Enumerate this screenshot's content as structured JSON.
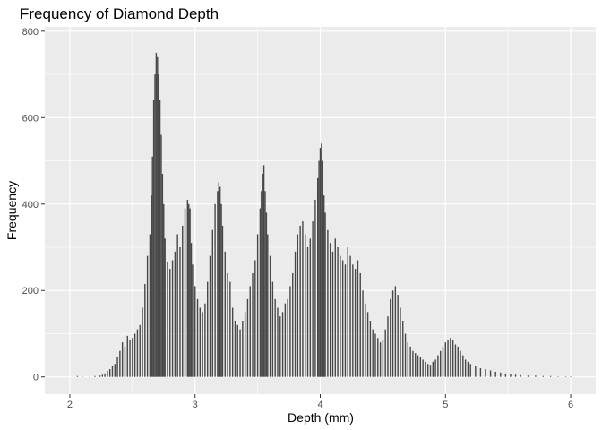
{
  "chart_data": {
    "type": "bar",
    "title": "Frequency of Diamond Depth",
    "xlabel": "Depth (mm)",
    "ylabel": "Frequency",
    "xlim": [
      1.8,
      6.2
    ],
    "ylim": [
      -40,
      810
    ],
    "xticks": [
      2,
      3,
      4,
      5,
      6
    ],
    "yticks": [
      0,
      200,
      400,
      600,
      800
    ],
    "xtick_labels": [
      "2",
      "3",
      "4",
      "5",
      "6"
    ],
    "ytick_labels": [
      "0",
      "200",
      "400",
      "600",
      "800"
    ],
    "grid": true,
    "bin_width": 0.01,
    "bar_color": "#474747",
    "panel_color": "#ebebeb",
    "grid_color": "#ffffff",
    "x": [
      2.06,
      2.1,
      2.16,
      2.2,
      2.24,
      2.26,
      2.28,
      2.3,
      2.32,
      2.34,
      2.36,
      2.38,
      2.4,
      2.42,
      2.44,
      2.46,
      2.48,
      2.5,
      2.52,
      2.54,
      2.56,
      2.58,
      2.6,
      2.62,
      2.64,
      2.65,
      2.66,
      2.67,
      2.68,
      2.69,
      2.7,
      2.71,
      2.72,
      2.73,
      2.74,
      2.75,
      2.76,
      2.78,
      2.8,
      2.82,
      2.84,
      2.86,
      2.88,
      2.9,
      2.92,
      2.94,
      2.95,
      2.96,
      2.97,
      2.98,
      3.0,
      3.02,
      3.04,
      3.06,
      3.08,
      3.1,
      3.12,
      3.14,
      3.16,
      3.18,
      3.19,
      3.2,
      3.21,
      3.22,
      3.24,
      3.26,
      3.28,
      3.3,
      3.32,
      3.34,
      3.36,
      3.38,
      3.4,
      3.42,
      3.44,
      3.46,
      3.48,
      3.5,
      3.52,
      3.53,
      3.54,
      3.55,
      3.56,
      3.57,
      3.58,
      3.6,
      3.62,
      3.64,
      3.66,
      3.68,
      3.7,
      3.72,
      3.74,
      3.76,
      3.78,
      3.8,
      3.82,
      3.84,
      3.86,
      3.88,
      3.9,
      3.92,
      3.94,
      3.96,
      3.98,
      3.99,
      4.0,
      4.01,
      4.02,
      4.03,
      4.04,
      4.06,
      4.08,
      4.1,
      4.12,
      4.14,
      4.16,
      4.18,
      4.2,
      4.22,
      4.24,
      4.26,
      4.28,
      4.3,
      4.32,
      4.34,
      4.36,
      4.38,
      4.4,
      4.42,
      4.44,
      4.46,
      4.48,
      4.5,
      4.52,
      4.54,
      4.56,
      4.58,
      4.6,
      4.62,
      4.64,
      4.66,
      4.68,
      4.7,
      4.72,
      4.74,
      4.76,
      4.78,
      4.8,
      4.82,
      4.84,
      4.86,
      4.88,
      4.9,
      4.92,
      4.94,
      4.96,
      4.98,
      5.0,
      5.02,
      5.04,
      5.06,
      5.08,
      5.1,
      5.12,
      5.14,
      5.16,
      5.18,
      5.2,
      5.24,
      5.28,
      5.32,
      5.36,
      5.4,
      5.44,
      5.48,
      5.52,
      5.56,
      5.6,
      5.66,
      5.72,
      5.78,
      5.84,
      5.9,
      5.96,
      6.0
    ],
    "values": [
      2,
      1,
      1,
      2,
      3,
      5,
      8,
      14,
      18,
      25,
      30,
      45,
      60,
      80,
      70,
      95,
      85,
      90,
      100,
      110,
      120,
      160,
      215,
      280,
      330,
      420,
      510,
      640,
      700,
      750,
      740,
      700,
      640,
      560,
      470,
      400,
      320,
      265,
      250,
      270,
      290,
      330,
      300,
      350,
      390,
      410,
      400,
      390,
      310,
      260,
      210,
      180,
      160,
      150,
      170,
      220,
      280,
      340,
      400,
      430,
      450,
      440,
      400,
      350,
      290,
      240,
      220,
      160,
      130,
      120,
      110,
      130,
      150,
      180,
      210,
      240,
      270,
      330,
      390,
      430,
      470,
      490,
      430,
      380,
      330,
      280,
      220,
      180,
      160,
      140,
      150,
      170,
      180,
      210,
      240,
      290,
      330,
      350,
      360,
      330,
      300,
      320,
      360,
      410,
      460,
      500,
      530,
      540,
      500,
      420,
      380,
      340,
      310,
      290,
      320,
      300,
      280,
      270,
      260,
      300,
      280,
      260,
      250,
      270,
      240,
      200,
      170,
      150,
      130,
      110,
      100,
      90,
      80,
      85,
      110,
      140,
      180,
      200,
      210,
      190,
      160,
      130,
      100,
      80,
      70,
      60,
      55,
      50,
      45,
      40,
      35,
      30,
      28,
      35,
      40,
      50,
      60,
      70,
      80,
      85,
      90,
      85,
      75,
      70,
      60,
      50,
      40,
      35,
      30,
      25,
      20,
      18,
      15,
      12,
      10,
      8,
      6,
      5,
      4,
      3,
      3,
      2,
      2,
      1,
      1,
      1
    ]
  }
}
